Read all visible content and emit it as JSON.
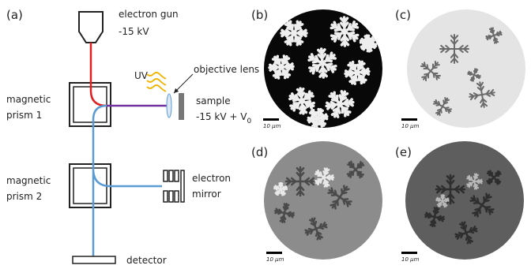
{
  "diagram": {
    "panel_labels": [
      "(a)",
      "(b)",
      "(c)",
      "(d)",
      "(e)"
    ],
    "electron_gun": [
      "electron gun",
      "-15 kV"
    ],
    "uv": "UV",
    "objective_lens": "objective lens",
    "sample": {
      "label": "sample",
      "voltage": "-15 kV + V",
      "subscript": "0"
    },
    "prism_1": [
      "magnetic",
      "prism 1"
    ],
    "prism_2": [
      "magnetic",
      "prism 2"
    ],
    "electron_mirror": [
      "electron",
      "mirror"
    ],
    "detector": "detector",
    "scale_bars": [
      "10 μm",
      "10 μm",
      "10 μm",
      "10 μm"
    ]
  }
}
